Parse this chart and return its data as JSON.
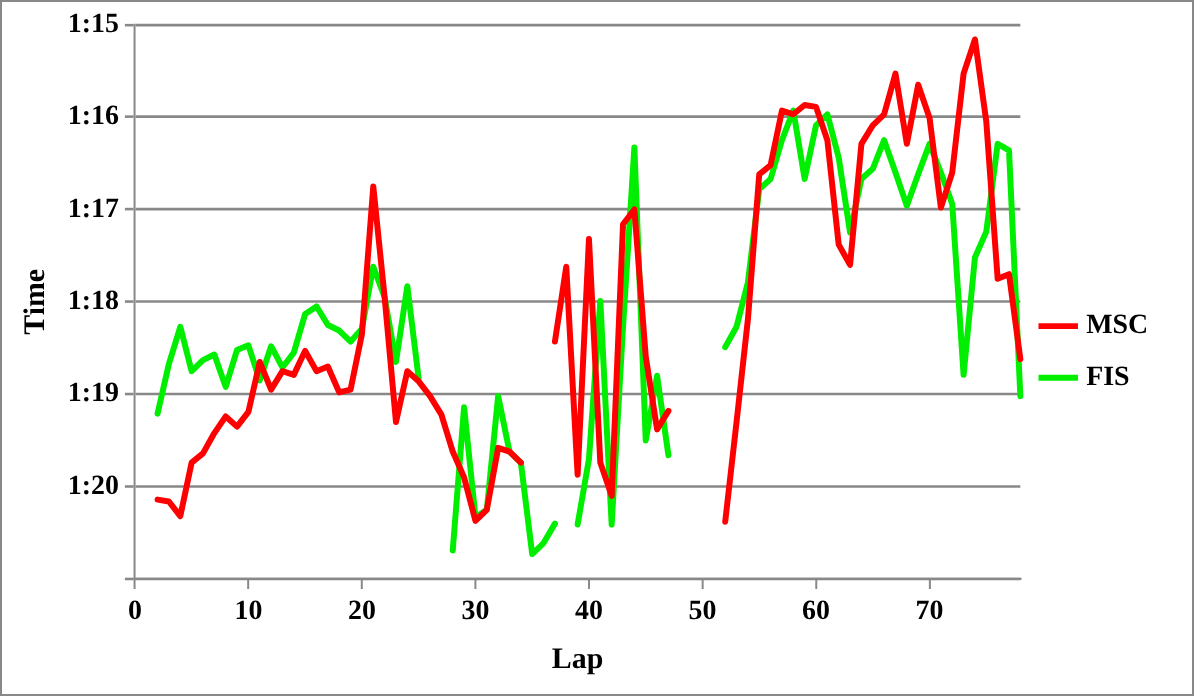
{
  "chart_data": {
    "type": "line",
    "xlabel": "Lap",
    "ylabel": "Time",
    "x": [
      2,
      3,
      4,
      5,
      6,
      7,
      8,
      9,
      10,
      11,
      12,
      13,
      14,
      15,
      16,
      17,
      18,
      19,
      20,
      21,
      22,
      23,
      24,
      25,
      26,
      27,
      28,
      29,
      30,
      31,
      32,
      33,
      34,
      35,
      36,
      37,
      38,
      39,
      40,
      41,
      42,
      43,
      44,
      45,
      46,
      47,
      48,
      49,
      50,
      51,
      52,
      53,
      54,
      55,
      56,
      57,
      58,
      59,
      60,
      61,
      62,
      63,
      64,
      65,
      66,
      67,
      68,
      69,
      70,
      71,
      72,
      73,
      74,
      75,
      76,
      77,
      78
    ],
    "series": [
      {
        "name": "MSC",
        "color": "#ff0000",
        "values": [
          80.14,
          80.16,
          80.32,
          79.74,
          79.64,
          79.42,
          79.24,
          79.35,
          79.19,
          78.65,
          78.95,
          78.75,
          78.79,
          78.53,
          78.75,
          78.7,
          78.98,
          78.95,
          78.35,
          76.75,
          77.95,
          79.3,
          78.75,
          78.86,
          79.02,
          79.22,
          79.62,
          79.9,
          80.37,
          80.25,
          79.58,
          79.62,
          79.74,
          null,
          null,
          78.43,
          77.62,
          79.87,
          77.32,
          79.74,
          80.1,
          77.16,
          77.0,
          78.59,
          79.38,
          79.18,
          null,
          null,
          null,
          null,
          80.38,
          79.3,
          78.19,
          76.62,
          76.52,
          75.93,
          75.97,
          75.87,
          75.89,
          76.25,
          77.38,
          77.6,
          76.29,
          76.09,
          75.97,
          75.53,
          76.29,
          75.65,
          76.01,
          76.98,
          76.6,
          75.53,
          75.16,
          76.05,
          77.75,
          77.7,
          78.62
        ]
      },
      {
        "name": "FIS",
        "color": "#00ee00",
        "values": [
          79.21,
          78.67,
          78.27,
          78.75,
          78.63,
          78.57,
          78.92,
          78.52,
          78.47,
          78.85,
          78.48,
          78.71,
          78.55,
          78.13,
          78.05,
          78.25,
          78.31,
          78.43,
          78.29,
          77.62,
          77.95,
          78.65,
          77.83,
          78.83,
          null,
          null,
          80.69,
          79.14,
          80.33,
          80.25,
          79.02,
          79.62,
          79.74,
          80.73,
          80.61,
          80.4,
          null,
          80.41,
          79.7,
          77.99,
          80.41,
          78.27,
          76.33,
          79.5,
          78.8,
          79.66,
          null,
          null,
          null,
          null,
          78.49,
          78.27,
          77.79,
          76.78,
          76.67,
          76.25,
          75.93,
          76.67,
          76.09,
          75.97,
          76.44,
          77.25,
          76.67,
          76.56,
          76.25,
          76.6,
          76.96,
          76.62,
          76.29,
          76.6,
          76.94,
          78.79,
          77.52,
          77.24,
          76.29,
          76.36,
          79.02
        ]
      }
    ],
    "xlim": [
      0,
      78
    ],
    "xticks": [
      0,
      10,
      20,
      30,
      40,
      50,
      60,
      70
    ],
    "ylim": [
      81,
      75
    ],
    "yticks": [
      {
        "value": 75,
        "label": "1:15"
      },
      {
        "value": 76,
        "label": "1:16"
      },
      {
        "value": 77,
        "label": "1:17"
      },
      {
        "value": 78,
        "label": "1:18"
      },
      {
        "value": 79,
        "label": "1:19"
      },
      {
        "value": 80,
        "label": "1:20"
      },
      {
        "value": 81,
        "label": null
      }
    ],
    "grid": "y",
    "legend": "right",
    "marker": "none",
    "line_style": "solid"
  }
}
